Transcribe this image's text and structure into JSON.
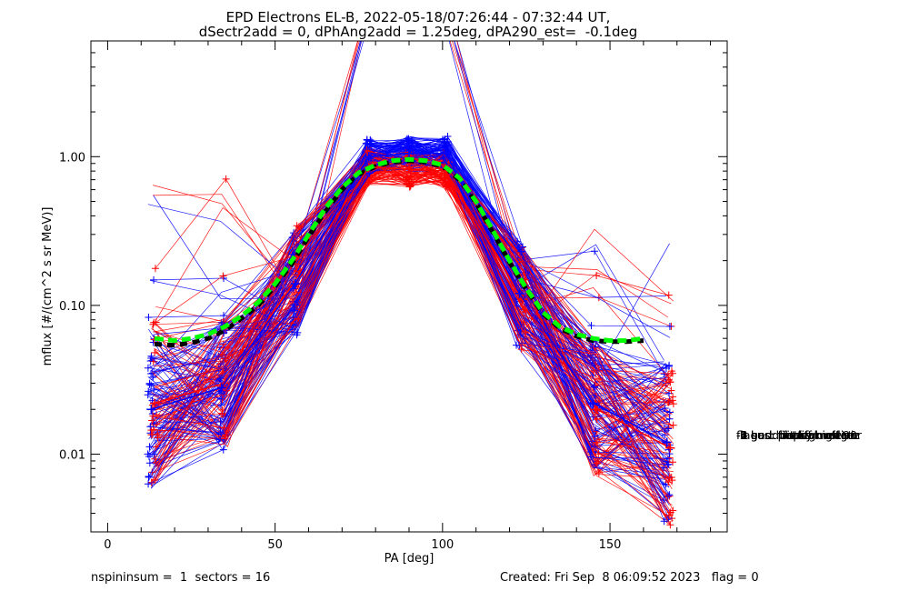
{
  "chart_data": {
    "type": "line",
    "title": "EPD Electrons EL-B, 2022-05-18/07:26:44 - 07:32:44 UT,",
    "subtitle": "dSectr2add = 0, dPhAng2add = 1.25deg, dPA290_est=  -0.1deg",
    "xlabel": "PA [deg]",
    "ylabel": "mflux [#/(cm^2 s sr MeV)]",
    "xlim": [
      -5,
      185
    ],
    "ylim": [
      0.003,
      6.0
    ],
    "yscale": "log",
    "x_ticks": [
      "0",
      "50",
      "100",
      "150"
    ],
    "y_ticks": [
      "0.01",
      "0.10",
      "1.00"
    ],
    "grid": false,
    "series": [
      {
        "color": "#ff0000",
        "x": [
          14,
          35,
          57,
          78,
          90,
          101,
          124,
          146,
          168
        ],
        "y": [
          0.022,
          0.03,
          0.16,
          0.85,
          0.82,
          0.8,
          0.11,
          0.02,
          0.011
        ]
      },
      {
        "color": "#0000ff",
        "x": [
          13,
          34,
          56,
          78,
          90,
          101,
          123,
          145,
          167
        ],
        "y": [
          0.02,
          0.028,
          0.14,
          1.0,
          1.05,
          1.05,
          0.12,
          0.022,
          0.012
        ]
      },
      {
        "color": "#00ff00",
        "dashed": true,
        "x": [
          14,
          20,
          25,
          30,
          35,
          40,
          45,
          50,
          55,
          60,
          65,
          70,
          75,
          80,
          85,
          90,
          95,
          100,
          105,
          110,
          115,
          120,
          125,
          130,
          135,
          140,
          145,
          150,
          155,
          160
        ],
        "y": [
          0.06,
          0.058,
          0.06,
          0.064,
          0.072,
          0.085,
          0.105,
          0.14,
          0.2,
          0.3,
          0.45,
          0.62,
          0.78,
          0.88,
          0.94,
          0.96,
          0.94,
          0.88,
          0.72,
          0.5,
          0.32,
          0.2,
          0.13,
          0.09,
          0.072,
          0.064,
          0.06,
          0.058,
          0.058,
          0.06
        ]
      },
      {
        "color": "#000000",
        "dashed": true,
        "x": [
          14,
          20,
          25,
          30,
          35,
          40,
          45,
          50,
          55,
          60,
          65,
          70,
          75,
          80,
          85,
          90,
          95,
          100,
          105,
          110,
          115,
          120,
          125,
          130,
          135,
          140,
          145,
          150,
          155,
          160
        ],
        "y": [
          0.055,
          0.054,
          0.056,
          0.06,
          0.068,
          0.082,
          0.1,
          0.135,
          0.19,
          0.29,
          0.43,
          0.6,
          0.76,
          0.86,
          0.92,
          0.94,
          0.92,
          0.86,
          0.7,
          0.49,
          0.31,
          0.195,
          0.128,
          0.088,
          0.07,
          0.062,
          0.058,
          0.057,
          0.057,
          0.058
        ]
      }
    ],
    "legend": {
      "placement": "right",
      "title": "flag",
      "entries": [
        " 0 good fit",
        " 1 bad: not converge",
        " 2 bad: no fit",
        " 3 bad: bad fgm state",
        "-1 sus: far off median",
        "-2 sus: not symmetric",
        "-3 sus: fit peak off 90",
        "-4 sus: peaks high var"
      ]
    }
  },
  "footer": {
    "left": "nspininsum =  1  sectors = 16",
    "right": "Created: Fri Sep  8 06:09:52 2023   flag = 0"
  }
}
